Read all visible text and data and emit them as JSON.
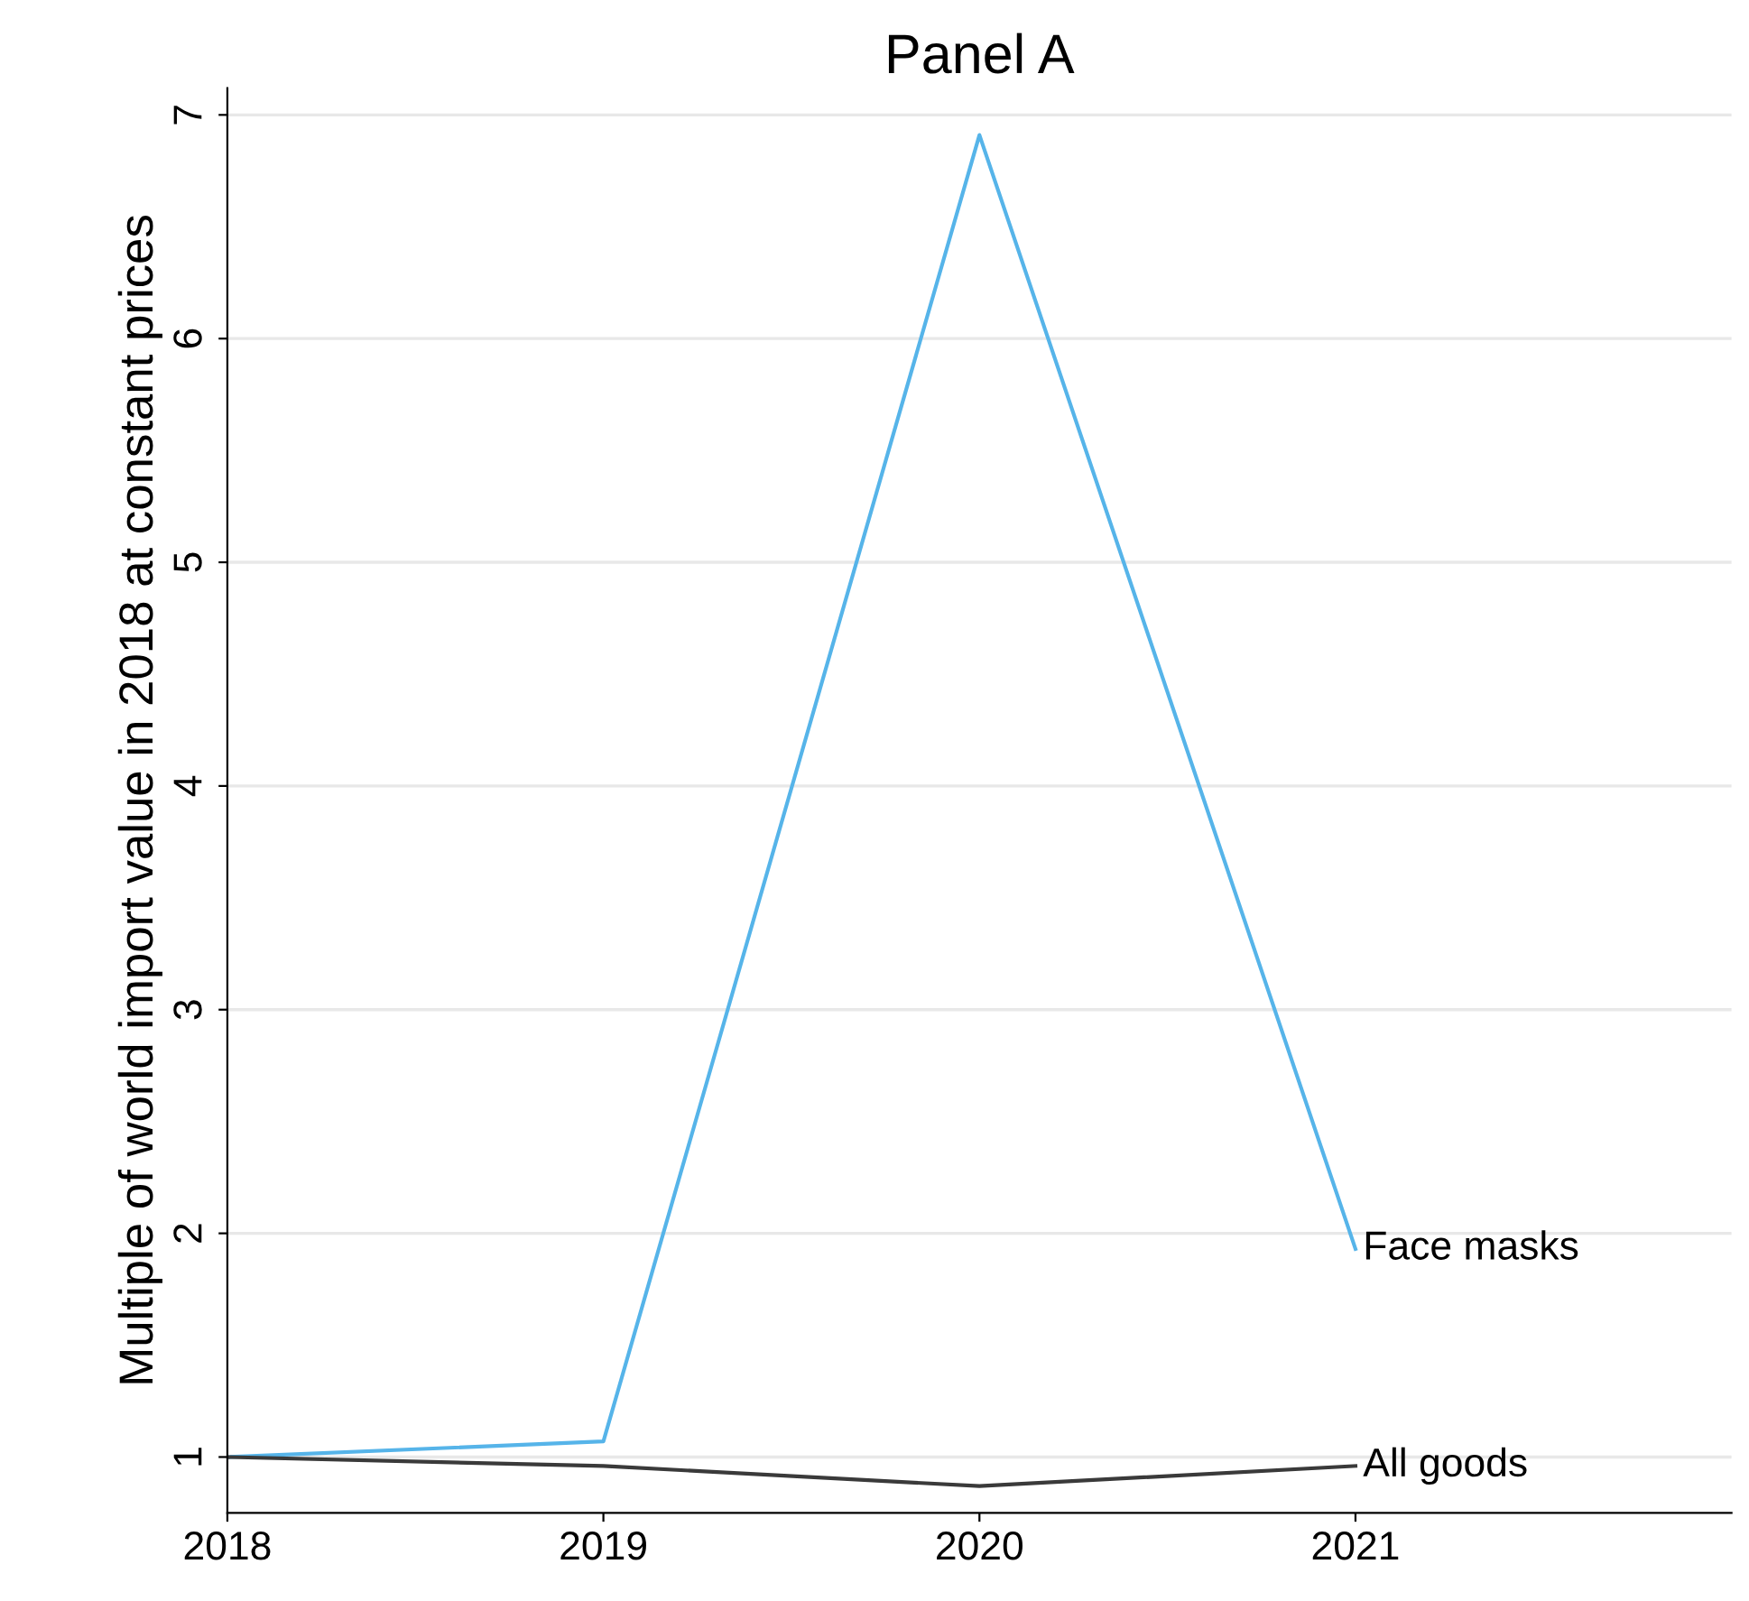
{
  "chart_data": {
    "type": "line",
    "title": "Panel A",
    "ylabel": "Multiple of world import value in 2018 at constant prices",
    "x": [
      2018,
      2019,
      2020,
      2021
    ],
    "series": [
      {
        "name": "Face masks",
        "color": "#56b4e9",
        "values": [
          1.0,
          1.07,
          6.91,
          1.93
        ]
      },
      {
        "name": "All goods",
        "color": "#3a3a3a",
        "values": [
          1.0,
          0.96,
          0.87,
          0.96
        ]
      }
    ],
    "xlim": [
      2018,
      2022
    ],
    "xticks": [
      2018,
      2019,
      2020,
      2021
    ],
    "ylim": [
      0.75,
      7.12
    ],
    "yticks": [
      1,
      2,
      3,
      4,
      5,
      6,
      7
    ],
    "grid": "y",
    "legend": false,
    "marker": "none",
    "line_style": "solid"
  }
}
